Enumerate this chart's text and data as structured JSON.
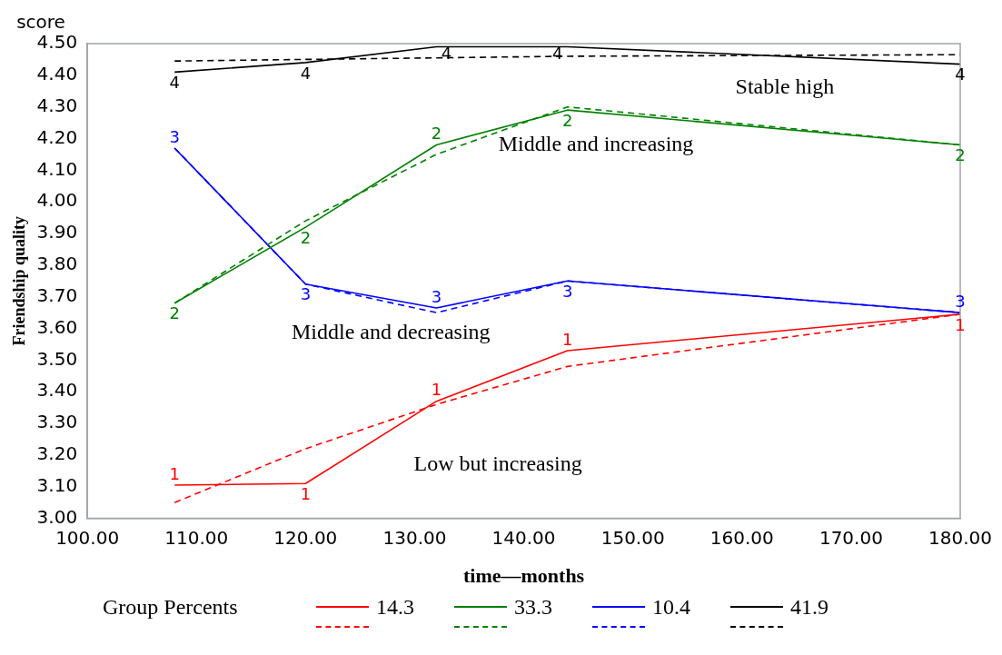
{
  "chart_data": {
    "type": "line",
    "xlabel": "time—months",
    "ylabel": "Friendship quality",
    "legend_title": "Group Percents",
    "legend": "bottom",
    "grid": false,
    "x": [
      108,
      120,
      132,
      144,
      180
    ],
    "xlim": [
      100,
      180
    ],
    "xticks": [
      {
        "value": 100,
        "label": "100.00"
      },
      {
        "value": 110,
        "label": "110.00"
      },
      {
        "value": 120,
        "label": "120.00"
      },
      {
        "value": 130,
        "label": "130.00"
      },
      {
        "value": 140,
        "label": "140.00"
      },
      {
        "value": 150,
        "label": "150.00"
      },
      {
        "value": 160,
        "label": "160.00"
      },
      {
        "value": 170,
        "label": "170.00"
      },
      {
        "value": 180,
        "label": "180.00"
      }
    ],
    "ylim": [
      3,
      4.5
    ],
    "yticks": [
      {
        "value": 3,
        "label": "3.00"
      },
      {
        "value": 3.1,
        "label": "3.10"
      },
      {
        "value": 3.2,
        "label": "3.20"
      },
      {
        "value": 3.3,
        "label": "3.30"
      },
      {
        "value": 3.4,
        "label": "3.40"
      },
      {
        "value": 3.5,
        "label": "3.50"
      },
      {
        "value": 3.6,
        "label": "3.60"
      },
      {
        "value": 3.7,
        "label": "3.70"
      },
      {
        "value": 3.8,
        "label": "3.80"
      },
      {
        "value": 3.9,
        "label": "3.90"
      },
      {
        "value": 4,
        "label": "4.00"
      },
      {
        "value": 4.1,
        "label": "4.10"
      },
      {
        "value": 4.2,
        "label": "4.20"
      },
      {
        "value": 4.3,
        "label": "4.30"
      },
      {
        "value": 4.4,
        "label": "4.40"
      },
      {
        "value": 4.5,
        "label": "4.50"
      }
    ],
    "series": [
      {
        "name": "14.3",
        "color": "#ff0000",
        "line_style": "solid",
        "values": [
          3.105,
          3.11,
          3.37,
          3.53,
          3.645
        ]
      },
      {
        "color": "#ff0000",
        "line_style": "dashed",
        "values": [
          3.05,
          3.22,
          3.36,
          3.48,
          3.645
        ]
      },
      {
        "name": "33.3",
        "color": "#008000",
        "line_style": "solid",
        "values": [
          3.68,
          3.92,
          4.18,
          4.29,
          4.18
        ]
      },
      {
        "color": "#008000",
        "line_style": "dashed",
        "values": [
          3.68,
          3.94,
          4.15,
          4.3,
          4.18
        ]
      },
      {
        "name": "10.4",
        "color": "#0000ff",
        "line_style": "solid",
        "values": [
          4.17,
          3.74,
          3.665,
          3.75,
          3.65
        ]
      },
      {
        "color": "#0000ff",
        "line_style": "dashed",
        "values": [
          4.17,
          3.74,
          3.65,
          3.75,
          3.65
        ]
      },
      {
        "name": "41.9",
        "color": "#000000",
        "line_style": "solid",
        "values": [
          4.41,
          4.44,
          4.49,
          4.49,
          4.435
        ]
      },
      {
        "color": "#000000",
        "line_style": "dashed",
        "values": [
          4.445,
          4.45,
          4.455,
          4.46,
          4.465
        ]
      }
    ],
    "annotations": [
      "score",
      "Stable high",
      "Middle and increasing",
      "Middle and decreasing",
      "Low but increasing",
      {
        "text": "1",
        "x": 108,
        "y": 3.105
      },
      {
        "text": "1",
        "x": 120,
        "y": 3.11
      },
      {
        "text": "1",
        "x": 132,
        "y": 3.37
      },
      {
        "text": "1",
        "x": 144,
        "y": 3.53
      },
      {
        "text": "1",
        "x": 180,
        "y": 3.645
      },
      {
        "text": "2",
        "x": 108,
        "y": 3.68
      },
      {
        "text": "2",
        "x": 120,
        "y": 3.92
      },
      {
        "text": "2",
        "x": 132,
        "y": 4.18
      },
      {
        "text": "2",
        "x": 144,
        "y": 4.29
      },
      {
        "text": "2",
        "x": 180,
        "y": 4.18
      },
      {
        "text": "3",
        "x": 108,
        "y": 4.17
      },
      {
        "text": "3",
        "x": 120,
        "y": 3.74
      },
      {
        "text": "3",
        "x": 132,
        "y": 3.665
      },
      {
        "text": "3",
        "x": 144,
        "y": 3.75
      },
      {
        "text": "3",
        "x": 180,
        "y": 3.65
      },
      {
        "text": "4",
        "x": 108,
        "y": 4.41
      },
      {
        "text": "4",
        "x": 120,
        "y": 4.44
      },
      {
        "text": "4",
        "x": 132,
        "y": 4.49
      },
      {
        "text": "4",
        "x": 144,
        "y": 4.49
      },
      {
        "text": "4",
        "x": 180,
        "y": 4.435
      }
    ]
  }
}
